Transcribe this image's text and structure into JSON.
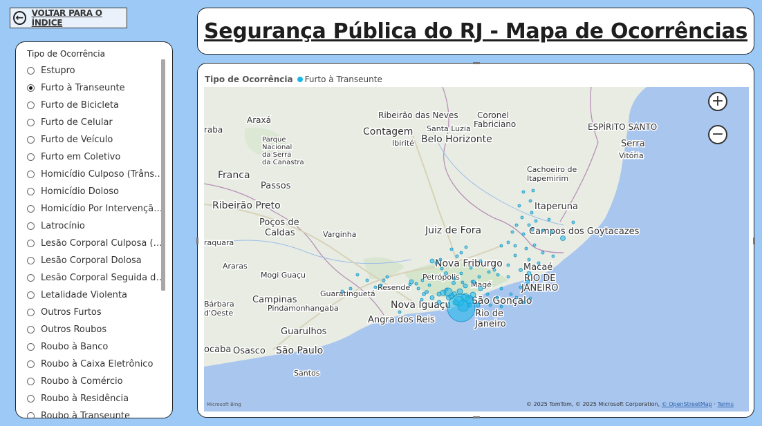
{
  "nav": {
    "back_label": "VOLTAR PARA O ÍNDICE"
  },
  "title": "Segurança Pública do RJ - Mapa de Ocorrências",
  "filter": {
    "header": "Tipo de Ocorrência",
    "options": [
      {
        "label": "Estupro",
        "selected": false
      },
      {
        "label": "Furto à Transeunte",
        "selected": true
      },
      {
        "label": "Furto de Bicicleta",
        "selected": false
      },
      {
        "label": "Furto de Celular",
        "selected": false
      },
      {
        "label": "Furto de Veículo",
        "selected": false
      },
      {
        "label": "Furto em Coletivo",
        "selected": false
      },
      {
        "label": "Homicídio Culposo (Trânsito)",
        "selected": false
      },
      {
        "label": "Homicídio Doloso",
        "selected": false
      },
      {
        "label": "Homicídio Por Intervenção ...",
        "selected": false
      },
      {
        "label": "Latrocínio",
        "selected": false
      },
      {
        "label": "Lesão Corporal Culposa (Trâ...",
        "selected": false
      },
      {
        "label": "Lesão Corporal Dolosa",
        "selected": false
      },
      {
        "label": "Lesão Corporal Seguida de ...",
        "selected": false
      },
      {
        "label": "Letalidade Violenta",
        "selected": false
      },
      {
        "label": "Outros Furtos",
        "selected": false
      },
      {
        "label": "Outros Roubos",
        "selected": false
      },
      {
        "label": "Roubo à Banco",
        "selected": false
      },
      {
        "label": "Roubo à Caixa Eletrônico",
        "selected": false
      },
      {
        "label": "Roubo à Comércio",
        "selected": false
      },
      {
        "label": "Roubo à Residência",
        "selected": false
      },
      {
        "label": "Roubo à Transeunte",
        "selected": false
      }
    ]
  },
  "map": {
    "legend_title": "Tipo de Ocorrência",
    "legend_series": "Furto à Transeunte",
    "series_color": "#1bb6e8",
    "zoom_in_label": "+",
    "zoom_out_label": "−",
    "attribution": "© 2025 TomTom, © 2025 Microsoft Corporation,",
    "attribution_link": "© OpenStreetMap",
    "terms": "Terms",
    "provider_logo": "Microsoft Bing",
    "cities": [
      {
        "name": "Ribeirão das Neves"
      },
      {
        "name": "Coronel"
      },
      {
        "name": "Fabriciano"
      },
      {
        "name": "Contagem"
      },
      {
        "name": "Santa Luzia"
      },
      {
        "name": "Ibirité"
      },
      {
        "name": "Belo Horizonte"
      },
      {
        "name": "Araxá"
      },
      {
        "name": "raba"
      },
      {
        "name": "Parque"
      },
      {
        "name": "Nacional"
      },
      {
        "name": "da Serra"
      },
      {
        "name": "da Canastra"
      },
      {
        "name": "ESPÍRITO SANTO"
      },
      {
        "name": "Serra"
      },
      {
        "name": "Vitória"
      },
      {
        "name": "Franca"
      },
      {
        "name": "Passos"
      },
      {
        "name": "Cachoeiro de"
      },
      {
        "name": "Itapemirim"
      },
      {
        "name": "Ribeirão Preto"
      },
      {
        "name": "Itaperuna"
      },
      {
        "name": "Poços de"
      },
      {
        "name": "Caldas"
      },
      {
        "name": "Varginha"
      },
      {
        "name": "Juiz de Fora"
      },
      {
        "name": "Campos dos Goytacazes"
      },
      {
        "name": "raquara"
      },
      {
        "name": "Araras"
      },
      {
        "name": "Nova Friburgo"
      },
      {
        "name": "Macaé"
      },
      {
        "name": "Mogi Guaçu"
      },
      {
        "name": "Petrópolis"
      },
      {
        "name": "Resende"
      },
      {
        "name": "Magé"
      },
      {
        "name": "RIO DE"
      },
      {
        "name": "JANEIRO"
      },
      {
        "name": "Guaratinguetá"
      },
      {
        "name": "Campinas"
      },
      {
        "name": "Pindamonhangaba"
      },
      {
        "name": "Bárbara"
      },
      {
        "name": "d'Oeste"
      },
      {
        "name": "Nova Iguaçu"
      },
      {
        "name": "São Gonçalo"
      },
      {
        "name": "Rio de"
      },
      {
        "name": "Janeiro"
      },
      {
        "name": "Angra dos Reis"
      },
      {
        "name": "Guarulhos"
      },
      {
        "name": "ocaba"
      },
      {
        "name": "Osasco"
      },
      {
        "name": "São Paulo"
      },
      {
        "name": "Santos"
      }
    ]
  }
}
